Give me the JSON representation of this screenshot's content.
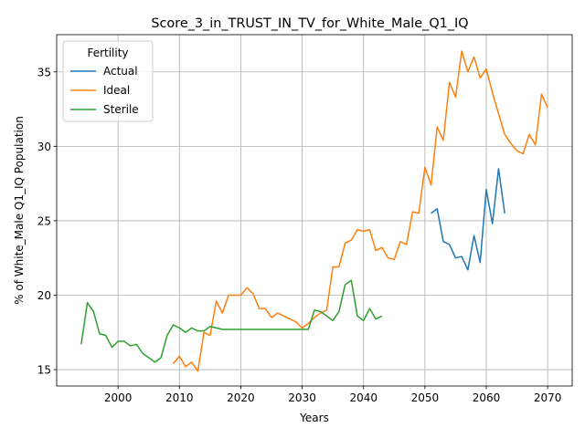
{
  "chart_data": {
    "type": "line",
    "title": "Score_3_in_TRUST_IN_TV_for_White_Male_Q1_IQ",
    "xlabel": "Years",
    "ylabel": "% of White_Male Q1_IQ Population",
    "xlim": [
      1990,
      2074
    ],
    "ylim": [
      13.9,
      37.5
    ],
    "xticks": [
      2000,
      2010,
      2020,
      2030,
      2040,
      2050,
      2060,
      2070
    ],
    "yticks": [
      15,
      20,
      25,
      30,
      35
    ],
    "grid": true,
    "legend": {
      "title": "Fertility",
      "placement": "top-left"
    },
    "series": [
      {
        "name": "Actual",
        "color": "#1f77b4",
        "x": [
          2051,
          2052,
          2053,
          2054,
          2055,
          2056,
          2057,
          2058,
          2059,
          2060,
          2061,
          2062,
          2063
        ],
        "values": [
          25.5,
          25.8,
          23.6,
          23.4,
          22.5,
          22.6,
          21.7,
          24.0,
          22.2,
          27.1,
          24.8,
          28.5,
          25.5
        ]
      },
      {
        "name": "Ideal",
        "color": "#ff7f0e",
        "x": [
          2009,
          2010,
          2011,
          2012,
          2013,
          2014,
          2015,
          2016,
          2017,
          2018,
          2019,
          2020,
          2021,
          2022,
          2023,
          2024,
          2025,
          2026,
          2027,
          2028,
          2029,
          2030,
          2031,
          2032,
          2033,
          2034,
          2035,
          2036,
          2037,
          2038,
          2039,
          2040,
          2041,
          2042,
          2043,
          2044,
          2045,
          2046,
          2047,
          2048,
          2049,
          2050,
          2051,
          2052,
          2053,
          2054,
          2055,
          2056,
          2057,
          2058,
          2059,
          2060,
          2061,
          2062,
          2063,
          2064,
          2065,
          2066,
          2067,
          2068,
          2069,
          2070
        ],
        "values": [
          15.4,
          15.9,
          15.2,
          15.5,
          14.9,
          17.5,
          17.3,
          19.6,
          18.8,
          20.0,
          20.0,
          20.0,
          20.5,
          20.1,
          19.1,
          19.1,
          18.5,
          18.8,
          18.6,
          18.4,
          18.2,
          17.8,
          18.1,
          18.5,
          18.8,
          19.0,
          21.9,
          21.9,
          23.5,
          23.7,
          24.4,
          24.3,
          24.4,
          23.0,
          23.2,
          22.5,
          22.4,
          23.6,
          23.4,
          25.6,
          25.5,
          28.6,
          27.4,
          31.3,
          30.4,
          34.3,
          33.3,
          36.4,
          35.0,
          36.0,
          34.6,
          35.2,
          33.6,
          32.2,
          30.8,
          30.2,
          29.7,
          29.5,
          30.8,
          30.1,
          33.5,
          32.6
        ]
      },
      {
        "name": "Sterile",
        "color": "#2ca02c",
        "x": [
          1994,
          1995,
          1996,
          1997,
          1998,
          1999,
          2000,
          2001,
          2002,
          2003,
          2004,
          2005,
          2006,
          2007,
          2008,
          2009,
          2010,
          2011,
          2012,
          2013,
          2014,
          2015,
          2016,
          2017,
          2018,
          2019,
          2020,
          2021,
          2022,
          2023,
          2024,
          2025,
          2026,
          2027,
          2028,
          2029,
          2030,
          2031,
          2032,
          2033,
          2034,
          2035,
          2036,
          2037,
          2038,
          2039,
          2040,
          2041,
          2042,
          2043
        ],
        "values": [
          16.7,
          19.5,
          18.9,
          17.4,
          17.3,
          16.5,
          16.9,
          16.9,
          16.6,
          16.7,
          16.1,
          15.8,
          15.5,
          15.8,
          17.3,
          18.0,
          17.8,
          17.5,
          17.8,
          17.6,
          17.6,
          17.9,
          17.8,
          17.7,
          17.7,
          17.7,
          17.7,
          17.7,
          17.7,
          17.7,
          17.7,
          17.7,
          17.7,
          17.7,
          17.7,
          17.7,
          17.7,
          17.7,
          19.0,
          18.9,
          18.6,
          18.3,
          18.9,
          20.7,
          21.0,
          18.6,
          18.3,
          19.1,
          18.4,
          18.6
        ]
      }
    ]
  }
}
